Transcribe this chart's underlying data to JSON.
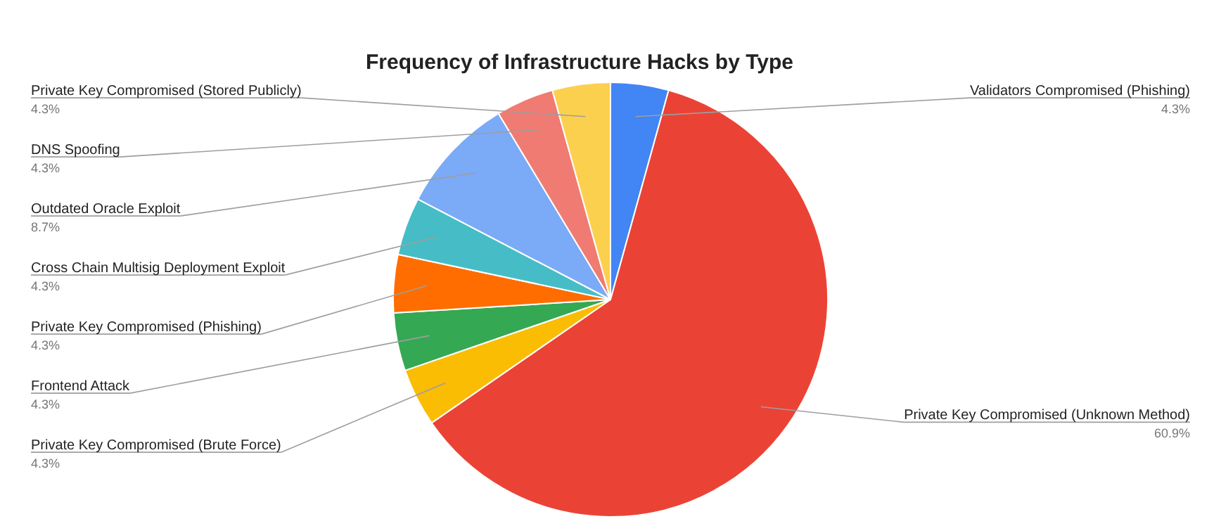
{
  "chart_data": {
    "type": "pie",
    "title": "Frequency of Infrastructure Hacks by Type",
    "categories": [
      "Validators Compromised (Phishing)",
      "Private Key Compromised (Unknown Method)",
      "Private Key Compromised (Brute Force)",
      "Frontend Attack",
      "Private Key Compromised (Phishing)",
      "Cross Chain Multisig Deployment Exploit",
      "Outdated Oracle Exploit",
      "DNS Spoofing",
      "Private Key Compromised (Stored Publicly)"
    ],
    "values": [
      4.3,
      60.9,
      4.3,
      4.3,
      4.3,
      4.3,
      8.7,
      4.3,
      4.3
    ],
    "value_labels": [
      "4.3%",
      "60.9%",
      "4.3%",
      "4.3%",
      "4.3%",
      "4.3%",
      "8.7%",
      "4.3%",
      "4.3%"
    ],
    "colors": [
      "#4285f4",
      "#ea4335",
      "#fbbc04",
      "#34a853",
      "#ff6d01",
      "#46bdc6",
      "#7baaf7",
      "#f07b72",
      "#fcd04f"
    ],
    "legend": false
  }
}
